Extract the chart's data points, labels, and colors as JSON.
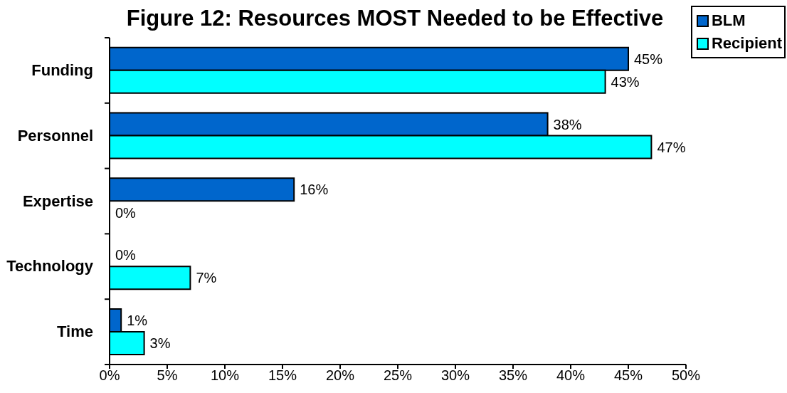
{
  "chart_data": {
    "type": "bar",
    "orientation": "horizontal",
    "title": "Figure 12: Resources MOST Needed to be Effective",
    "categories": [
      "Funding",
      "Personnel",
      "Expertise",
      "Technology",
      "Time"
    ],
    "series": [
      {
        "name": "BLM",
        "color": "#0066cc",
        "values": [
          45,
          38,
          16,
          0,
          1
        ],
        "value_labels": [
          "45%",
          "38%",
          "16%",
          "0%",
          "1%"
        ]
      },
      {
        "name": "Recipient",
        "color": "#00ffff",
        "values": [
          43,
          47,
          0,
          7,
          3
        ],
        "value_labels": [
          "43%",
          "47%",
          "0%",
          "7%",
          "3%"
        ]
      }
    ],
    "xlim": [
      0,
      50
    ],
    "xticks": [
      {
        "value": 0,
        "label": "0%"
      },
      {
        "value": 5,
        "label": "5%"
      },
      {
        "value": 10,
        "label": "10%"
      },
      {
        "value": 15,
        "label": "15%"
      },
      {
        "value": 20,
        "label": "20%"
      },
      {
        "value": 25,
        "label": "25%"
      },
      {
        "value": 30,
        "label": "30%"
      },
      {
        "value": 35,
        "label": "35%"
      },
      {
        "value": 40,
        "label": "40%"
      },
      {
        "value": 45,
        "label": "45%"
      },
      {
        "value": 50,
        "label": "50%"
      }
    ],
    "legend": "top right"
  }
}
